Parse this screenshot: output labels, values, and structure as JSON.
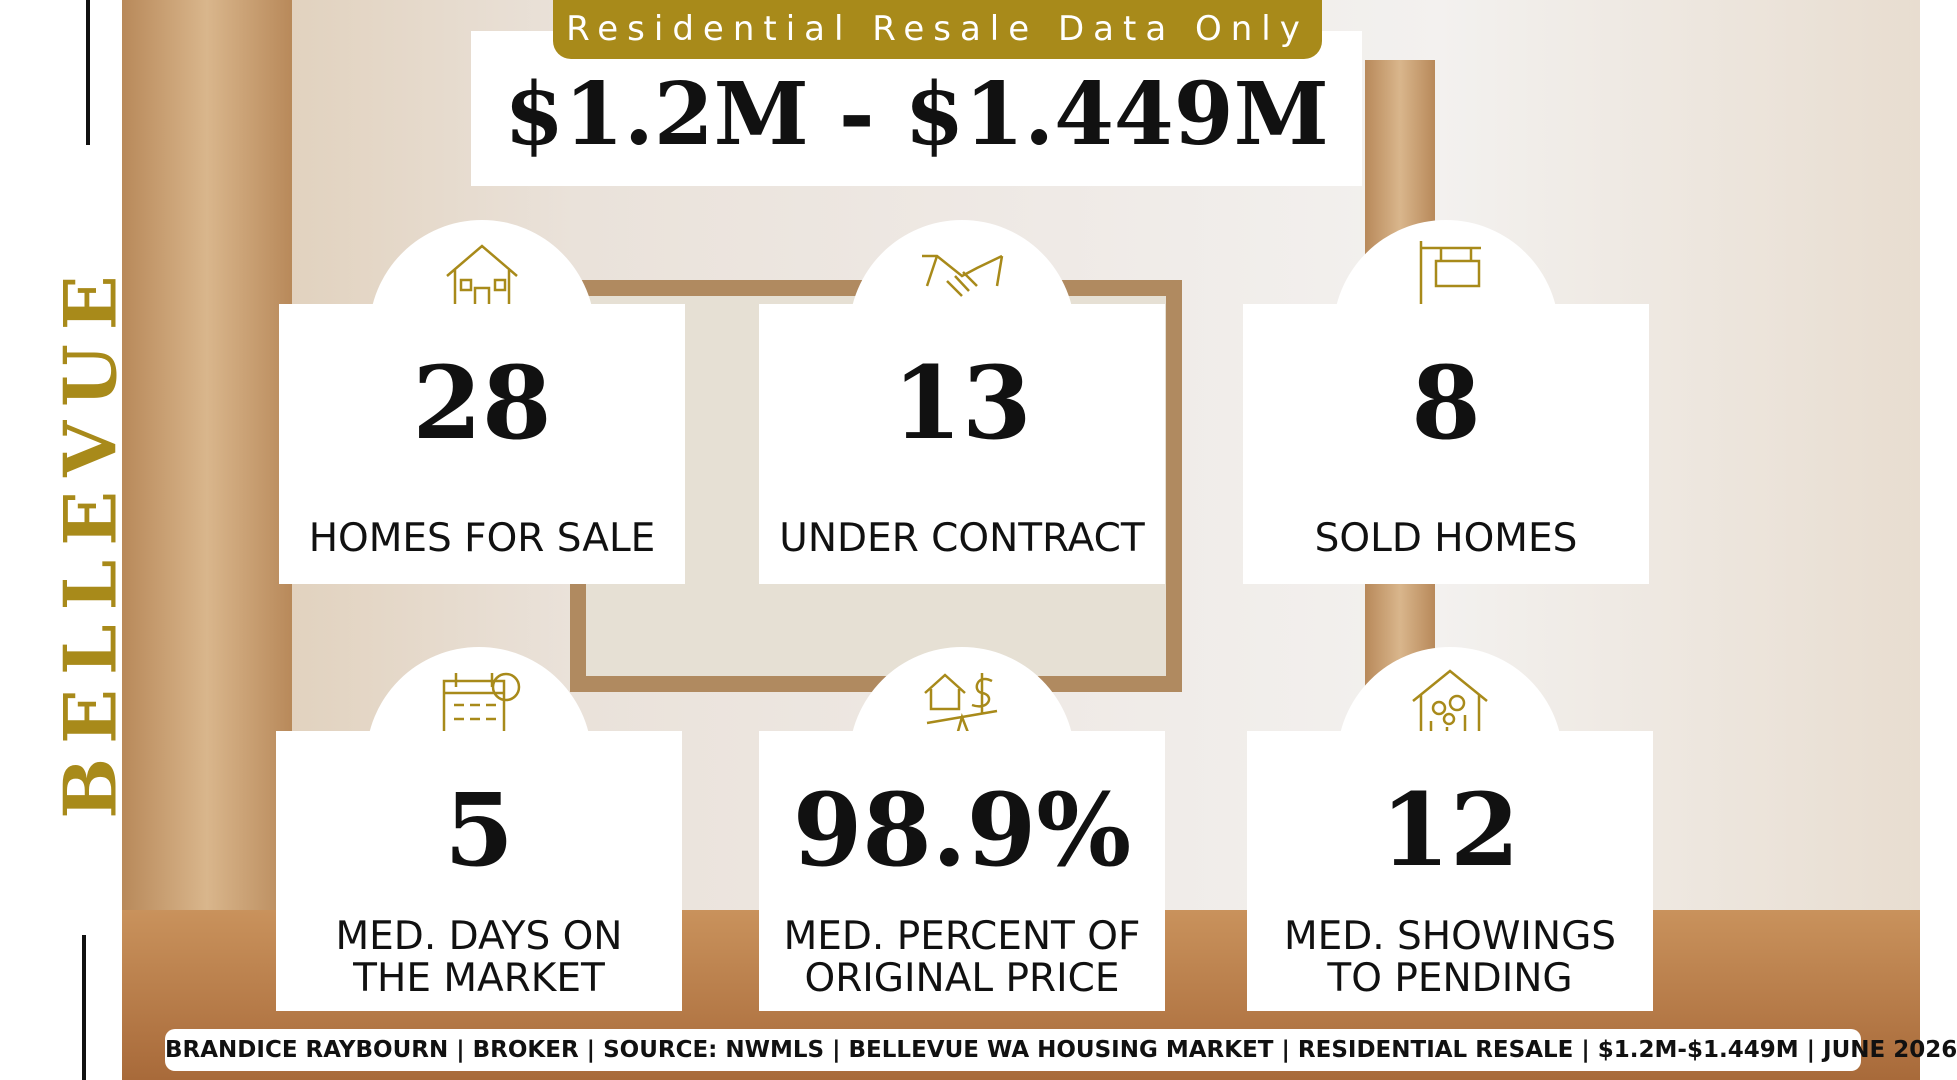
{
  "header": {
    "tag": "Residential Resale Data Only",
    "price_range": "$1.2M - $1.449M"
  },
  "side_title": "BELLEVUE",
  "stats": [
    {
      "value": "28",
      "label_lines": [
        "HOMES FOR SALE"
      ]
    },
    {
      "value": "13",
      "label_lines": [
        "UNDER CONTRACT"
      ]
    },
    {
      "value": "8",
      "label_lines": [
        "SOLD HOMES"
      ]
    },
    {
      "value": "5",
      "label_lines": [
        "MED. DAYS ON",
        "THE MARKET"
      ]
    },
    {
      "value": "98.9%",
      "label_lines": [
        "MED. PERCENT OF",
        "ORIGINAL PRICE"
      ]
    },
    {
      "value": "12",
      "label_lines": [
        "MED. SHOWINGS",
        "TO PENDING"
      ]
    }
  ],
  "footer": "BRANDICE RAYBOURN | BROKER | SOURCE: NWMLS | BELLEVUE WA HOUSING MARKET | RESIDENTIAL RESALE | $1.2M-$1.449M | JUNE 2026"
}
